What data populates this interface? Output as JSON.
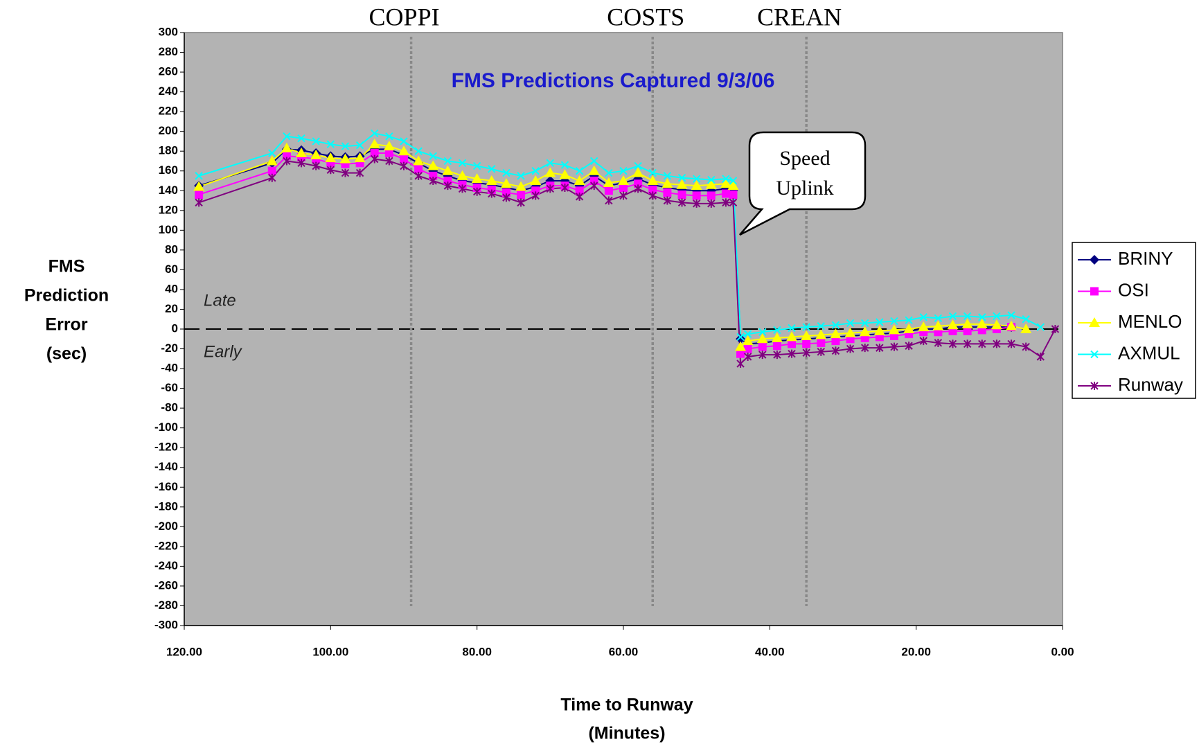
{
  "chart_data": {
    "type": "line",
    "title": "FMS Predictions Captured 9/3/06",
    "y_label": [
      "FMS",
      "Prediction",
      "Error",
      "(sec)"
    ],
    "x_label": [
      "Time to Runway",
      "(Minutes)"
    ],
    "xlim": [
      120,
      0
    ],
    "xticks": [
      {
        "value": 120,
        "label": "120.00"
      },
      {
        "value": 100,
        "label": "100.00"
      },
      {
        "value": 80,
        "label": "80.00"
      },
      {
        "value": 60,
        "label": "60.00"
      },
      {
        "value": 40,
        "label": "40.00"
      },
      {
        "value": 20,
        "label": "20.00"
      },
      {
        "value": 0,
        "label": "0.00"
      }
    ],
    "ylim": [
      -300,
      300
    ],
    "yticks": [
      -300,
      -280,
      -260,
      -240,
      -220,
      -200,
      -180,
      -160,
      -140,
      -120,
      -100,
      -80,
      -60,
      -40,
      -20,
      0,
      20,
      40,
      60,
      80,
      100,
      120,
      140,
      160,
      180,
      200,
      220,
      240,
      260,
      280,
      300
    ],
    "fix_lines": [
      {
        "label": "COPPI",
        "x": 89
      },
      {
        "label": "COSTS",
        "x": 56
      },
      {
        "label": "CREAN",
        "x": 35
      }
    ],
    "region_labels": [
      "Late",
      "Early"
    ],
    "callout": [
      "Speed",
      "Uplink"
    ],
    "legend": "right",
    "x": [
      118,
      108,
      106,
      104,
      102,
      100,
      98,
      96,
      94,
      92,
      90,
      88,
      86,
      84,
      82,
      80,
      78,
      76,
      74,
      72,
      70,
      68,
      66,
      64,
      62,
      60,
      58,
      56,
      54,
      52,
      50,
      48,
      46,
      45,
      44,
      43,
      41,
      39,
      37,
      35,
      33,
      31,
      29,
      27,
      25,
      23,
      21,
      19,
      17,
      15,
      13,
      11,
      9,
      7,
      5,
      3,
      1
    ],
    "series": [
      {
        "name": "BRINY",
        "color": "#000080",
        "marker": "diamond",
        "values": [
          145,
          168,
          182,
          181,
          178,
          175,
          174,
          175,
          182,
          182,
          176,
          168,
          160,
          155,
          150,
          148,
          146,
          143,
          140,
          144,
          150,
          150,
          145,
          155,
          145,
          148,
          152,
          146,
          143,
          141,
          140,
          140,
          142,
          140,
          -10,
          -15,
          -14,
          -12,
          -11,
          -10,
          -9,
          -8,
          -7,
          -6,
          -5,
          -4,
          -2,
          0,
          0,
          2,
          2,
          2,
          2,
          2,
          null,
          null,
          null
        ]
      },
      {
        "name": "OSI",
        "color": "#ff00ff",
        "marker": "square",
        "values": [
          136,
          160,
          175,
          174,
          172,
          168,
          167,
          168,
          178,
          178,
          172,
          162,
          155,
          150,
          146,
          143,
          141,
          138,
          136,
          140,
          145,
          145,
          140,
          150,
          140,
          143,
          147,
          141,
          138,
          136,
          135,
          135,
          137,
          136,
          -25,
          -20,
          -18,
          -17,
          -15,
          -15,
          -14,
          -12,
          -10,
          -9,
          -8,
          -7,
          -5,
          -3,
          -3,
          -2,
          -2,
          -1,
          0,
          2,
          null,
          null,
          null
        ]
      },
      {
        "name": "MENLO",
        "color": "#ffff00",
        "marker": "triangle",
        "values": [
          144,
          170,
          183,
          178,
          176,
          173,
          172,
          173,
          187,
          185,
          180,
          170,
          165,
          160,
          155,
          152,
          150,
          147,
          144,
          150,
          158,
          156,
          150,
          160,
          148,
          150,
          158,
          150,
          147,
          146,
          145,
          146,
          147,
          145,
          -18,
          -12,
          -10,
          -9,
          -8,
          -7,
          -6,
          -5,
          -4,
          -3,
          -2,
          -1,
          0,
          2,
          3,
          4,
          5,
          5,
          4,
          3,
          0,
          null,
          null
        ]
      },
      {
        "name": "AXMUL",
        "color": "#00ffff",
        "marker": "x",
        "values": [
          155,
          178,
          195,
          193,
          190,
          187,
          185,
          186,
          198,
          195,
          190,
          180,
          175,
          170,
          168,
          165,
          162,
          158,
          155,
          160,
          168,
          166,
          160,
          170,
          158,
          160,
          165,
          158,
          155,
          153,
          152,
          151,
          152,
          150,
          -8,
          -5,
          -3,
          -1,
          1,
          2,
          3,
          4,
          6,
          6,
          7,
          8,
          9,
          12,
          11,
          13,
          13,
          12,
          13,
          14,
          10,
          2,
          null
        ]
      },
      {
        "name": "Runway",
        "color": "#800080",
        "marker": "star",
        "values": [
          128,
          153,
          170,
          168,
          165,
          161,
          158,
          158,
          172,
          170,
          165,
          155,
          150,
          145,
          142,
          139,
          137,
          133,
          128,
          135,
          142,
          143,
          134,
          145,
          130,
          135,
          142,
          135,
          130,
          128,
          127,
          127,
          128,
          128,
          -35,
          -28,
          -26,
          -26,
          -25,
          -24,
          -23,
          -22,
          -20,
          -19,
          -19,
          -18,
          -17,
          -12,
          -14,
          -15,
          -15,
          -15,
          -15,
          -15,
          -18,
          -28,
          0
        ]
      }
    ]
  }
}
